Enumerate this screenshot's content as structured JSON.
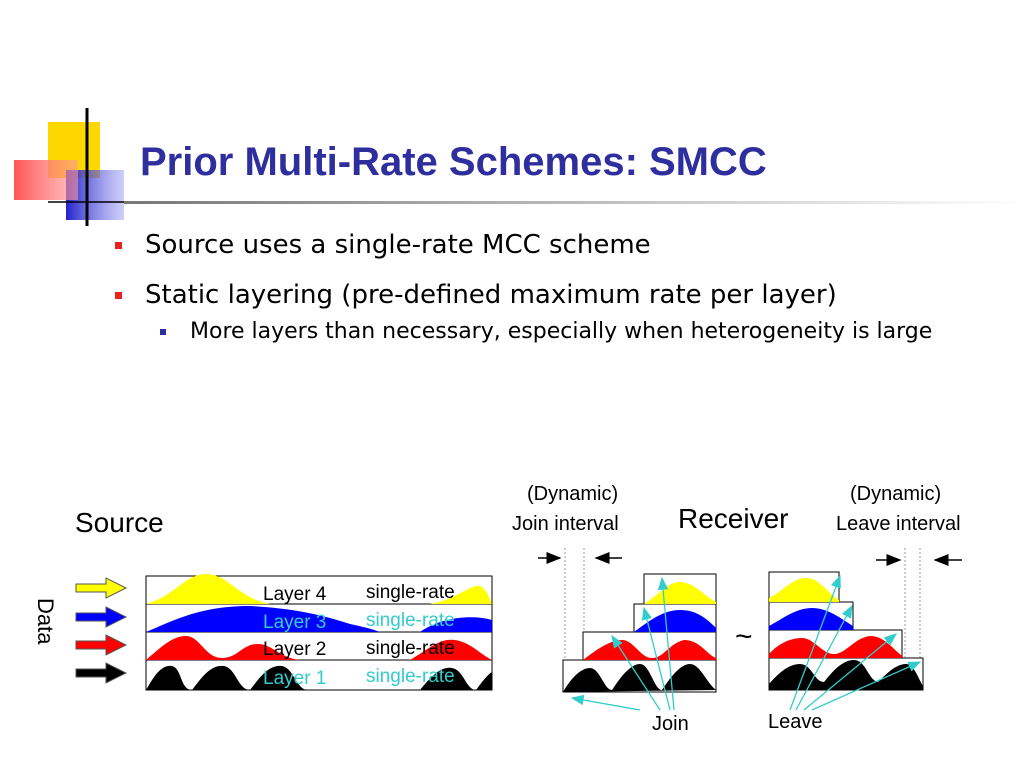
{
  "slide": {
    "title": "Prior Multi-Rate Schemes: SMCC",
    "bullets": [
      "Source uses a single-rate MCC scheme",
      "Static layering (pre-defined maximum rate per layer)"
    ],
    "sub_bullets": [
      "More layers than necessary, especially when heterogeneity is large"
    ]
  },
  "diagram": {
    "source_label": "Source",
    "data_label": "Data",
    "receiver_label": "Receiver",
    "tilde": "~",
    "join_interval": [
      "(Dynamic)",
      "Join interval"
    ],
    "leave_interval": [
      "(Dynamic)",
      "Leave interval"
    ],
    "join_label": "Join",
    "leave_label": "Leave",
    "layers": [
      {
        "name": "Layer 4",
        "mode": "single-rate",
        "color": "#ffff00",
        "text_color": "#000000"
      },
      {
        "name": "Layer 3",
        "mode": "single-rate",
        "color": "#0000ff",
        "text_color": "#33cccc"
      },
      {
        "name": "Layer 2",
        "mode": "single-rate",
        "color": "#ff0000",
        "text_color": "#000000"
      },
      {
        "name": "Layer 1",
        "mode": "single-rate",
        "color": "#000000",
        "text_color": "#33cccc"
      }
    ],
    "colors": {
      "title": "#2e2e9e",
      "arrow_teal": "#33cccc"
    }
  }
}
